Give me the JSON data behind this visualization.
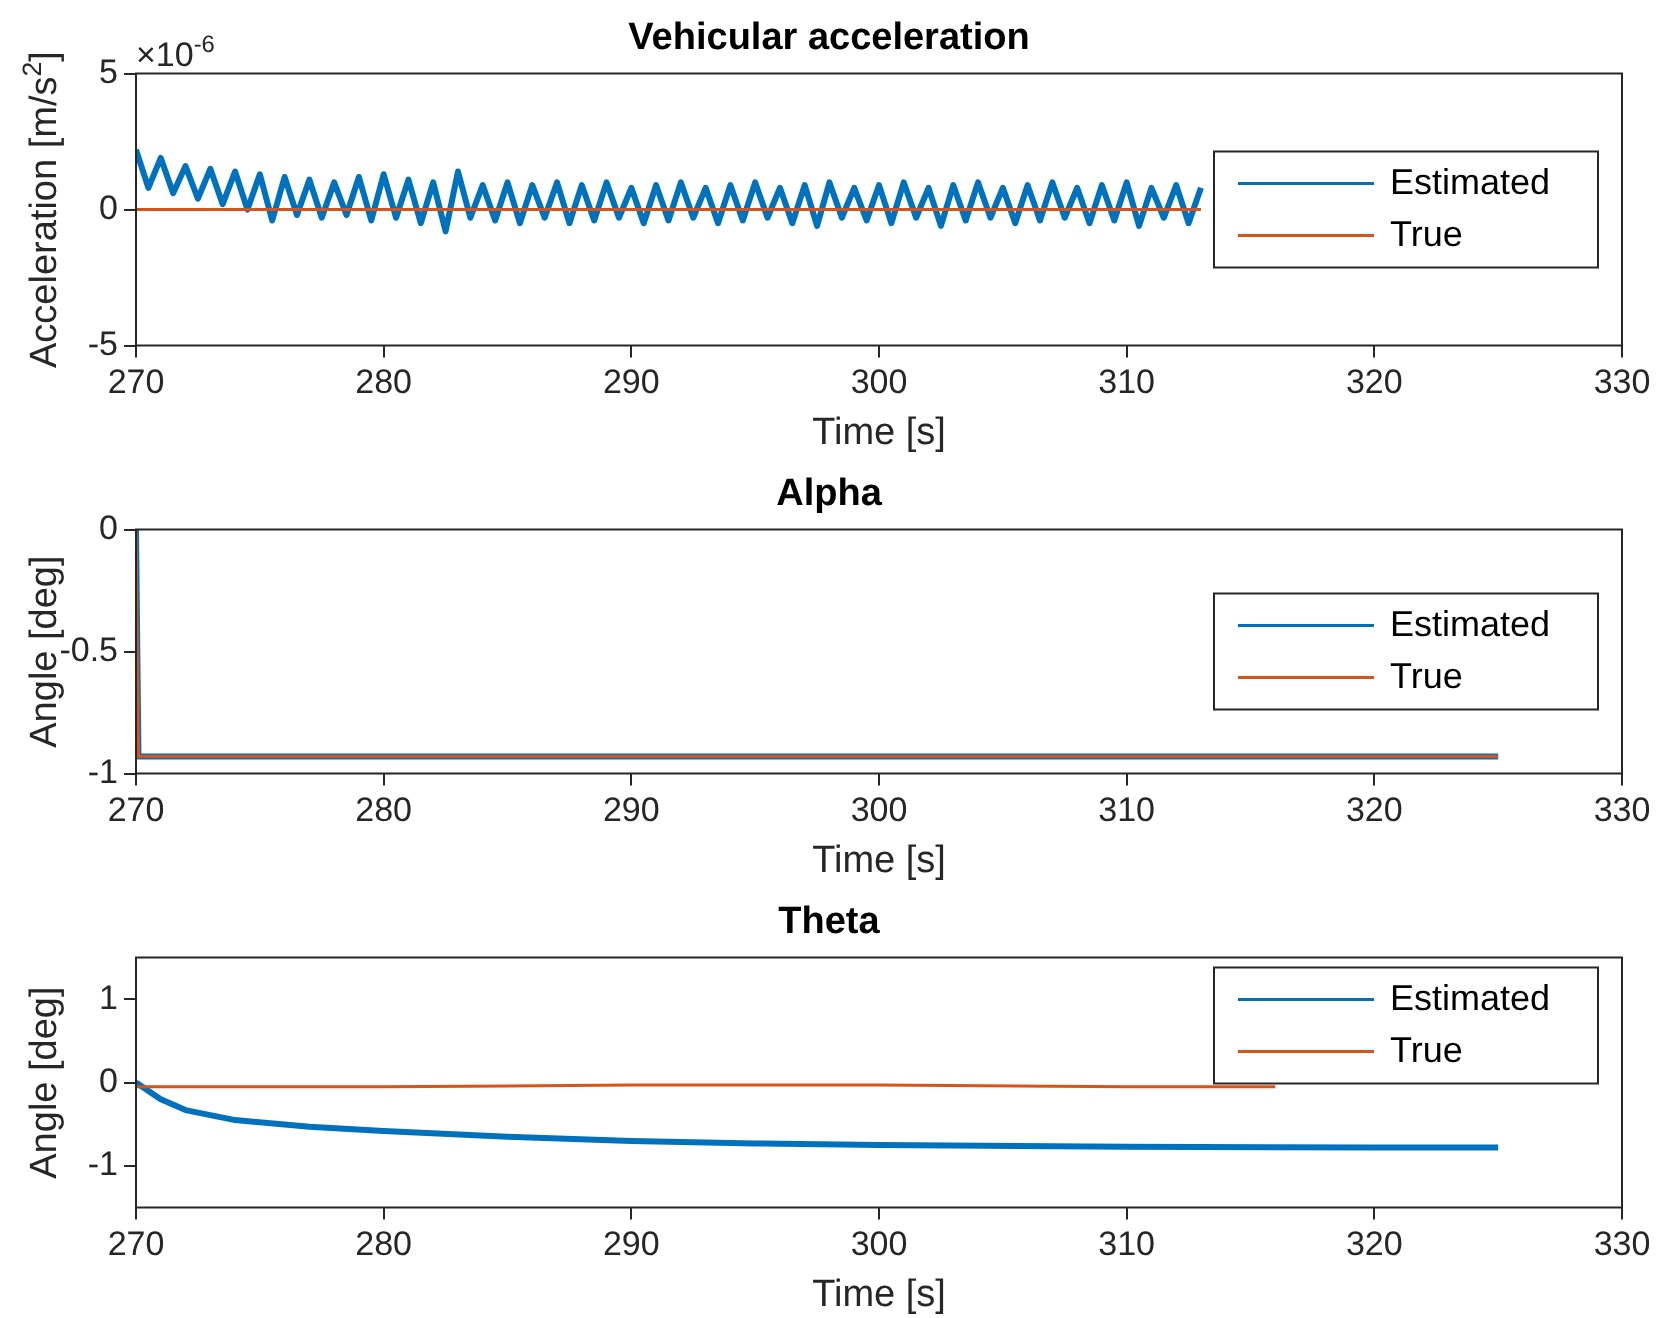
{
  "chart_data": [
    {
      "type": "line",
      "title": "Vehicular acceleration",
      "xlabel": "Time [s]",
      "ylabel": "Acceleration [m/s$^{2}$]",
      "annotations": [
        "×10$^{-6}$"
      ],
      "xlim": [
        270,
        330
      ],
      "xticks": [
        270,
        280,
        290,
        300,
        310,
        320,
        330
      ],
      "ylim": [
        -5,
        5
      ],
      "yticks": [
        -5,
        0,
        5
      ],
      "legend": "right",
      "series": [
        {
          "name": "Estimated",
          "color": "#0072bd",
          "x": [
            270,
            270.5,
            271,
            271.5,
            272,
            272.5,
            273,
            273.5,
            274,
            274.5,
            275,
            275.5,
            276,
            276.5,
            277,
            277.5,
            278,
            278.5,
            279,
            279.5,
            280,
            280.5,
            281,
            281.5,
            282,
            282.5,
            283,
            283.5,
            284,
            284.5,
            285,
            285.5,
            286,
            286.5,
            287,
            287.5,
            288,
            288.5,
            289,
            289.5,
            290,
            290.5,
            291,
            291.5,
            292,
            292.5,
            293,
            293.5,
            294,
            294.5,
            295,
            295.5,
            296,
            296.5,
            297,
            297.5,
            298,
            298.5,
            299,
            299.5,
            300,
            300.5,
            301,
            301.5,
            302,
            302.5,
            303,
            303.5,
            304,
            304.5,
            305,
            305.5,
            306,
            306.5,
            307,
            307.5,
            308,
            308.5,
            309,
            309.5,
            310,
            310.5,
            311,
            311.5,
            312,
            312.5,
            313
          ],
          "values": [
            2.2,
            0.8,
            1.9,
            0.6,
            1.6,
            0.4,
            1.5,
            0.2,
            1.4,
            0,
            1.3,
            -0.4,
            1.2,
            -0.2,
            1.1,
            -0.3,
            1,
            -0.2,
            1.2,
            -0.4,
            1.3,
            -0.3,
            1.1,
            -0.5,
            1,
            -0.8,
            1.4,
            -0.3,
            0.9,
            -0.4,
            1,
            -0.5,
            0.9,
            -0.3,
            1,
            -0.5,
            0.9,
            -0.4,
            1,
            -0.3,
            0.8,
            -0.5,
            0.9,
            -0.4,
            1,
            -0.3,
            0.8,
            -0.5,
            0.9,
            -0.4,
            1,
            -0.3,
            0.8,
            -0.5,
            0.9,
            -0.6,
            1,
            -0.3,
            0.8,
            -0.4,
            0.9,
            -0.5,
            1,
            -0.3,
            0.8,
            -0.6,
            0.9,
            -0.4,
            1,
            -0.3,
            0.8,
            -0.5,
            0.9,
            -0.4,
            1,
            -0.3,
            0.8,
            -0.5,
            0.9,
            -0.4,
            1,
            -0.6,
            0.8,
            -0.3,
            0.9,
            -0.5,
            0.8
          ]
        },
        {
          "name": "True",
          "color": "#d95319",
          "x": [
            270,
            313
          ],
          "values": [
            0,
            0
          ]
        }
      ]
    },
    {
      "type": "line",
      "title": "Alpha",
      "xlabel": "Time [s]",
      "ylabel": "Angle [deg]",
      "xlim": [
        270,
        330
      ],
      "xticks": [
        270,
        280,
        290,
        300,
        310,
        320,
        330
      ],
      "ylim": [
        -1,
        0
      ],
      "yticks": [
        -1,
        -0.5,
        0
      ],
      "legend": "right",
      "series": [
        {
          "name": "Estimated",
          "color": "#0072bd",
          "x": [
            270,
            270.1,
            325
          ],
          "values": [
            0,
            -0.93,
            -0.93
          ]
        },
        {
          "name": "True",
          "color": "#d95319",
          "x": [
            270,
            270.1,
            325
          ],
          "values": [
            0,
            -0.93,
            -0.93
          ]
        }
      ]
    },
    {
      "type": "line",
      "title": "Theta",
      "xlabel": "Time [s]",
      "ylabel": "Angle [deg]",
      "xlim": [
        270,
        330
      ],
      "xticks": [
        270,
        280,
        290,
        300,
        310,
        320,
        330
      ],
      "ylim": [
        -1.5,
        1.5
      ],
      "yticks": [
        -1,
        0,
        1
      ],
      "legend": "top right",
      "series": [
        {
          "name": "Estimated",
          "color": "#0072bd",
          "x": [
            270,
            271,
            272,
            274,
            277,
            280,
            285,
            290,
            295,
            300,
            310,
            320,
            325
          ],
          "values": [
            0,
            -0.2,
            -0.33,
            -0.45,
            -0.53,
            -0.58,
            -0.65,
            -0.7,
            -0.73,
            -0.75,
            -0.77,
            -0.78,
            -0.78
          ]
        },
        {
          "name": "True",
          "color": "#d95319",
          "x": [
            270,
            280,
            290,
            300,
            310,
            316
          ],
          "values": [
            -0.05,
            -0.05,
            -0.03,
            -0.03,
            -0.05,
            -0.05
          ]
        }
      ]
    }
  ]
}
